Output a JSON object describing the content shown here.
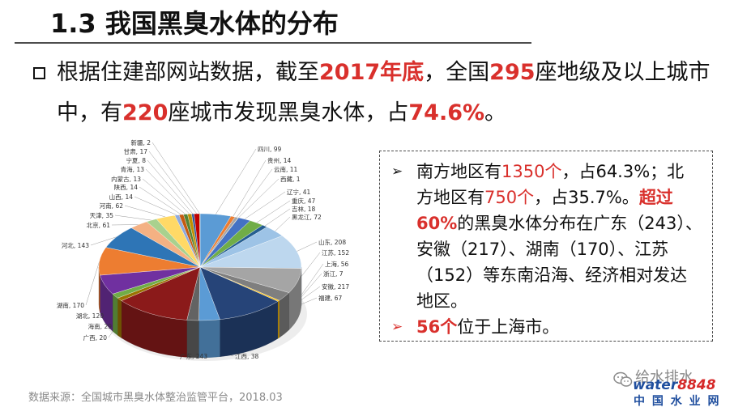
{
  "title": "1.3 我国黑臭水体的分布",
  "colors": {
    "text": "#111111",
    "highlight_red": "#D9302C",
    "muted": "#8A8A8A",
    "logo_blue": "#1F4E9E",
    "logo_red": "#D62828"
  },
  "intro": {
    "lines": [
      [
        "根据住建部网站数据，截至",
        "2017年底",
        "，全国",
        "295",
        "座地级及以上城市"
      ],
      [
        "中，有",
        "220",
        "座城市发现黑臭水体，占",
        "74.6%",
        "。"
      ]
    ]
  },
  "summary": {
    "bullet": "➢",
    "items": [
      {
        "lines": [
          [
            "南方地区有",
            "1350个",
            "，占64.3%；北"
          ],
          [
            "方地区有",
            "750个",
            "，占35.7%。",
            "超过"
          ],
          [
            "60%",
            "的黑臭水体分布在广东（243）、"
          ],
          [
            "安徽（217）、湖南（170）、江苏"
          ],
          [
            "（152）等东南沿海、经济相对发达"
          ],
          [
            "地区。"
          ]
        ]
      },
      {
        "lines": [
          [
            "56个",
            "位于上海市。"
          ]
        ]
      }
    ]
  },
  "source": "数据来源：全国城市黑臭水体整治监管平台，2018.03",
  "watermark": {
    "wechat_account": "给水排水",
    "logo_word": "water",
    "logo_number": "8848",
    "site_name": "中 国 水 业 网"
  },
  "chart_data": {
    "type": "pie",
    "is_3d": true,
    "categories": [
      "四川",
      "贵州",
      "云南",
      "西藏",
      "辽宁",
      "重庆",
      "吉林",
      "黑龙江",
      "山东",
      "江苏",
      "上海",
      "浙江",
      "安徽",
      "福建",
      "江西",
      "广东",
      "广西",
      "海南",
      "湖北",
      "湖南",
      "河北",
      "北京",
      "天津",
      "河南",
      "山西",
      "陕西",
      "内蒙古",
      "青海",
      "宁夏",
      "甘肃",
      "新疆"
    ],
    "values": [
      99,
      14,
      11,
      1,
      41,
      47,
      18,
      72,
      208,
      152,
      56,
      7,
      217,
      67,
      38,
      243,
      20,
      29,
      120,
      170,
      143,
      61,
      35,
      62,
      14,
      14,
      13,
      13,
      8,
      17,
      2
    ],
    "label_separator": ", ",
    "colors": [
      "#5B9BD5",
      "#ED7D31",
      "#A5A5A5",
      "#FFC000",
      "#4472C4",
      "#70AD47",
      "#255E91",
      "#9DC3E6",
      "#BDD7EE",
      "#A5A5A5",
      "#7F7F7F",
      "#FFC000",
      "#264478",
      "#5B9BD5",
      "#636363",
      "#8B1A1A",
      "#997300",
      "#70AD47",
      "#7030A0",
      "#ED7D31",
      "#2E75B6",
      "#F4B183",
      "#A9D18E",
      "#FFD966",
      "#8FAADC",
      "#C55A11",
      "#548235",
      "#BF9000",
      "#2F5597",
      "#C00000",
      "#7F6000"
    ]
  }
}
